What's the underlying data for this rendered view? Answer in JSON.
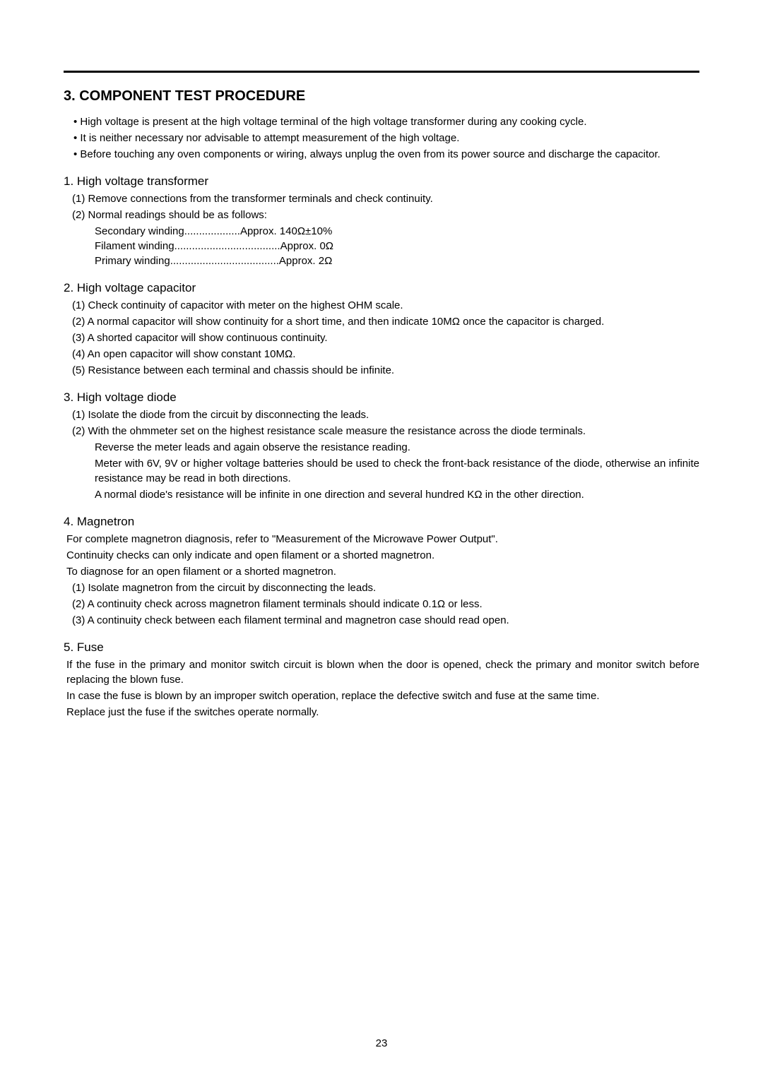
{
  "page_number": "23",
  "heading": "3. COMPONENT TEST PROCEDURE",
  "intro_bullets": [
    "• High voltage is present at the high voltage terminal of the high voltage transformer during any cooking cycle.",
    "• It is neither necessary nor advisable to attempt measurement of the high voltage.",
    "• Before touching any oven components or wiring, always unplug the oven from its power source and discharge the capacitor."
  ],
  "sections": {
    "s1": {
      "title": "1. High voltage transformer",
      "lines": [
        "(1) Remove connections from the transformer terminals and check continuity.",
        "(2) Normal readings should be as follows:"
      ],
      "rows": [
        {
          "label": "Secondary winding",
          "dots": "...................",
          "value": "Approx. 140Ω±10%"
        },
        {
          "label": "Filament winding",
          "dots": "....................................",
          "value": "Approx. 0Ω"
        },
        {
          "label": "Primary winding",
          "dots": ".....................................",
          "value": "Approx. 2Ω"
        }
      ]
    },
    "s2": {
      "title": "2. High voltage capacitor",
      "lines": [
        "(1) Check continuity of capacitor with meter on the highest OHM scale.",
        "(2) A normal capacitor will show continuity for a short time, and then indicate 10MΩ once the capacitor is charged.",
        "(3) A shorted capacitor will show continuous continuity.",
        "(4) An open capacitor will show constant 10MΩ.",
        "(5) Resistance between each terminal and chassis should be infinite."
      ]
    },
    "s3": {
      "title": "3. High voltage diode",
      "lines": [
        "(1) Isolate the diode from the circuit  by disconnecting the leads.",
        "(2) With the ohmmeter set on the highest resistance scale measure the resistance across the diode terminals."
      ],
      "indents": [
        "Reverse the meter leads and again observe the resistance reading.",
        "Meter with 6V, 9V or higher voltage batteries should be used to check the front-back resistance of the diode, otherwise an infinite resistance may be read in both directions.",
        "A normal diode's resistance will be infinite in one direction and several hundred KΩ in the other direction."
      ]
    },
    "s4": {
      "title": "4. Magnetron",
      "plain": [
        "For complete magnetron diagnosis, refer to \"Measurement of the Microwave Power Output\".",
        "Continuity checks can only indicate and open filament or a shorted magnetron.",
        "To diagnose for an open filament or a shorted magnetron."
      ],
      "lines": [
        "(1) Isolate magnetron from the circuit by disconnecting the leads.",
        "(2) A continuity check across magnetron filament terminals should indicate 0.1Ω or less.",
        "(3) A continuity check between each filament terminal and magnetron case should read open."
      ]
    },
    "s5": {
      "title": "5. Fuse",
      "plain": [
        "If the fuse in the primary and monitor switch circuit is blown when the door is opened, check the primary and monitor switch before replacing the blown fuse.",
        "In case the fuse is blown by an improper switch operation, replace the defective switch and fuse at the same time.",
        "Replace just the fuse if the switches operate normally."
      ]
    }
  }
}
